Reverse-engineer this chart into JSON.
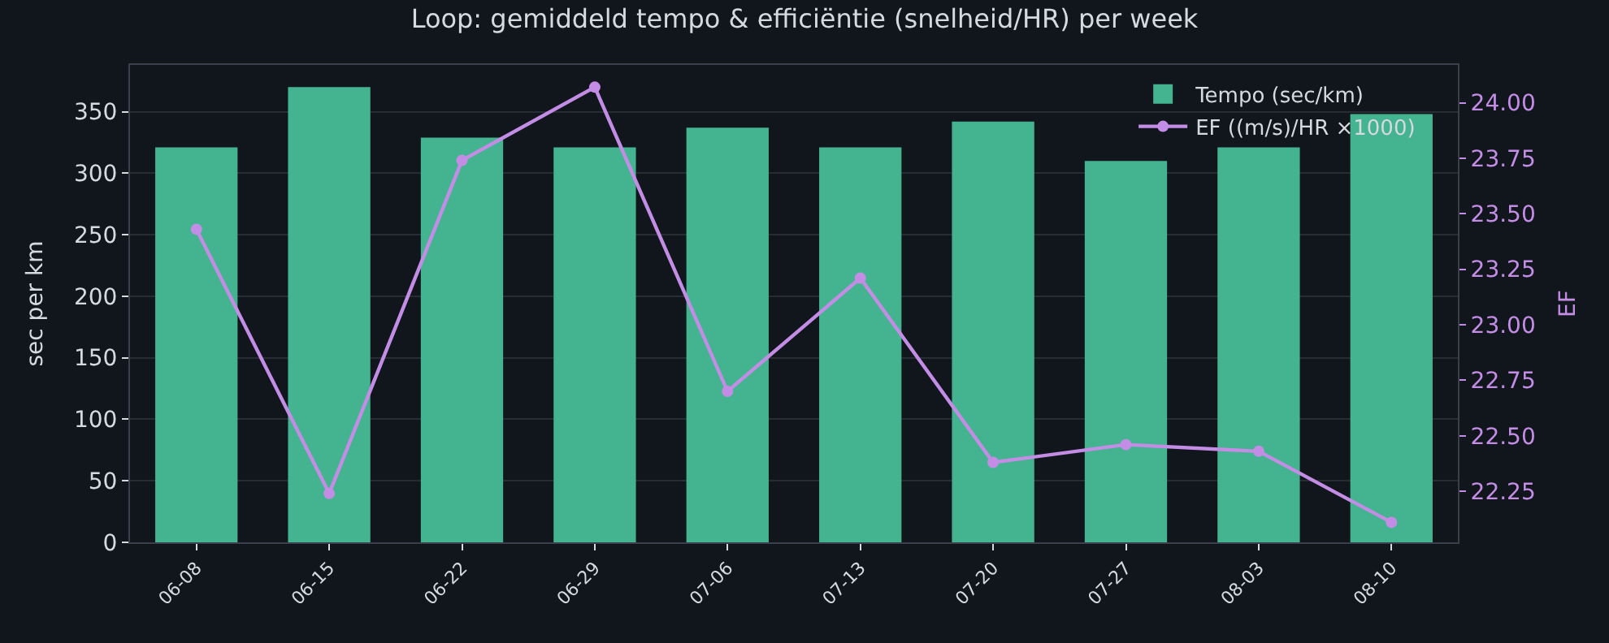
{
  "chart_data": {
    "type": "bar",
    "title": "Loop: gemiddeld tempo & efficiëntie (snelheid/HR) per week",
    "ylabel": "sec per km",
    "y2label": "EF",
    "categories": [
      "06-08",
      "06-15",
      "06-22",
      "06-29",
      "07-06",
      "07-13",
      "07-20",
      "07-27",
      "08-03",
      "08-10"
    ],
    "series": [
      {
        "name": "Tempo (sec/km)",
        "color": "#43b48f",
        "values": [
          321,
          370,
          329,
          321,
          337,
          321,
          342,
          310,
          321,
          348
        ]
      },
      {
        "name": "EF ((m/s)/HR ×1000)",
        "type": "line",
        "axis": "y2",
        "color": "#c38de6",
        "marker": "circle",
        "values": [
          23.43,
          22.24,
          23.74,
          24.07,
          22.7,
          23.21,
          22.38,
          22.46,
          22.43,
          22.11
        ]
      }
    ],
    "ylim": [
      0,
      388
    ],
    "yticks": [
      0,
      50,
      100,
      150,
      200,
      250,
      300,
      350
    ],
    "y2lim": [
      22.02,
      24.17
    ],
    "y2ticks": [
      {
        "value": 22.25,
        "label": "22.25"
      },
      {
        "value": 22.5,
        "label": "22.50"
      },
      {
        "value": 22.75,
        "label": "22.75"
      },
      {
        "value": 23.0,
        "label": "23.00"
      },
      {
        "value": 23.25,
        "label": "23.25"
      },
      {
        "value": 23.5,
        "label": "23.50"
      },
      {
        "value": 23.75,
        "label": "23.75"
      },
      {
        "value": 24.0,
        "label": "24.00"
      }
    ],
    "grid": "y",
    "legend": "top right"
  }
}
